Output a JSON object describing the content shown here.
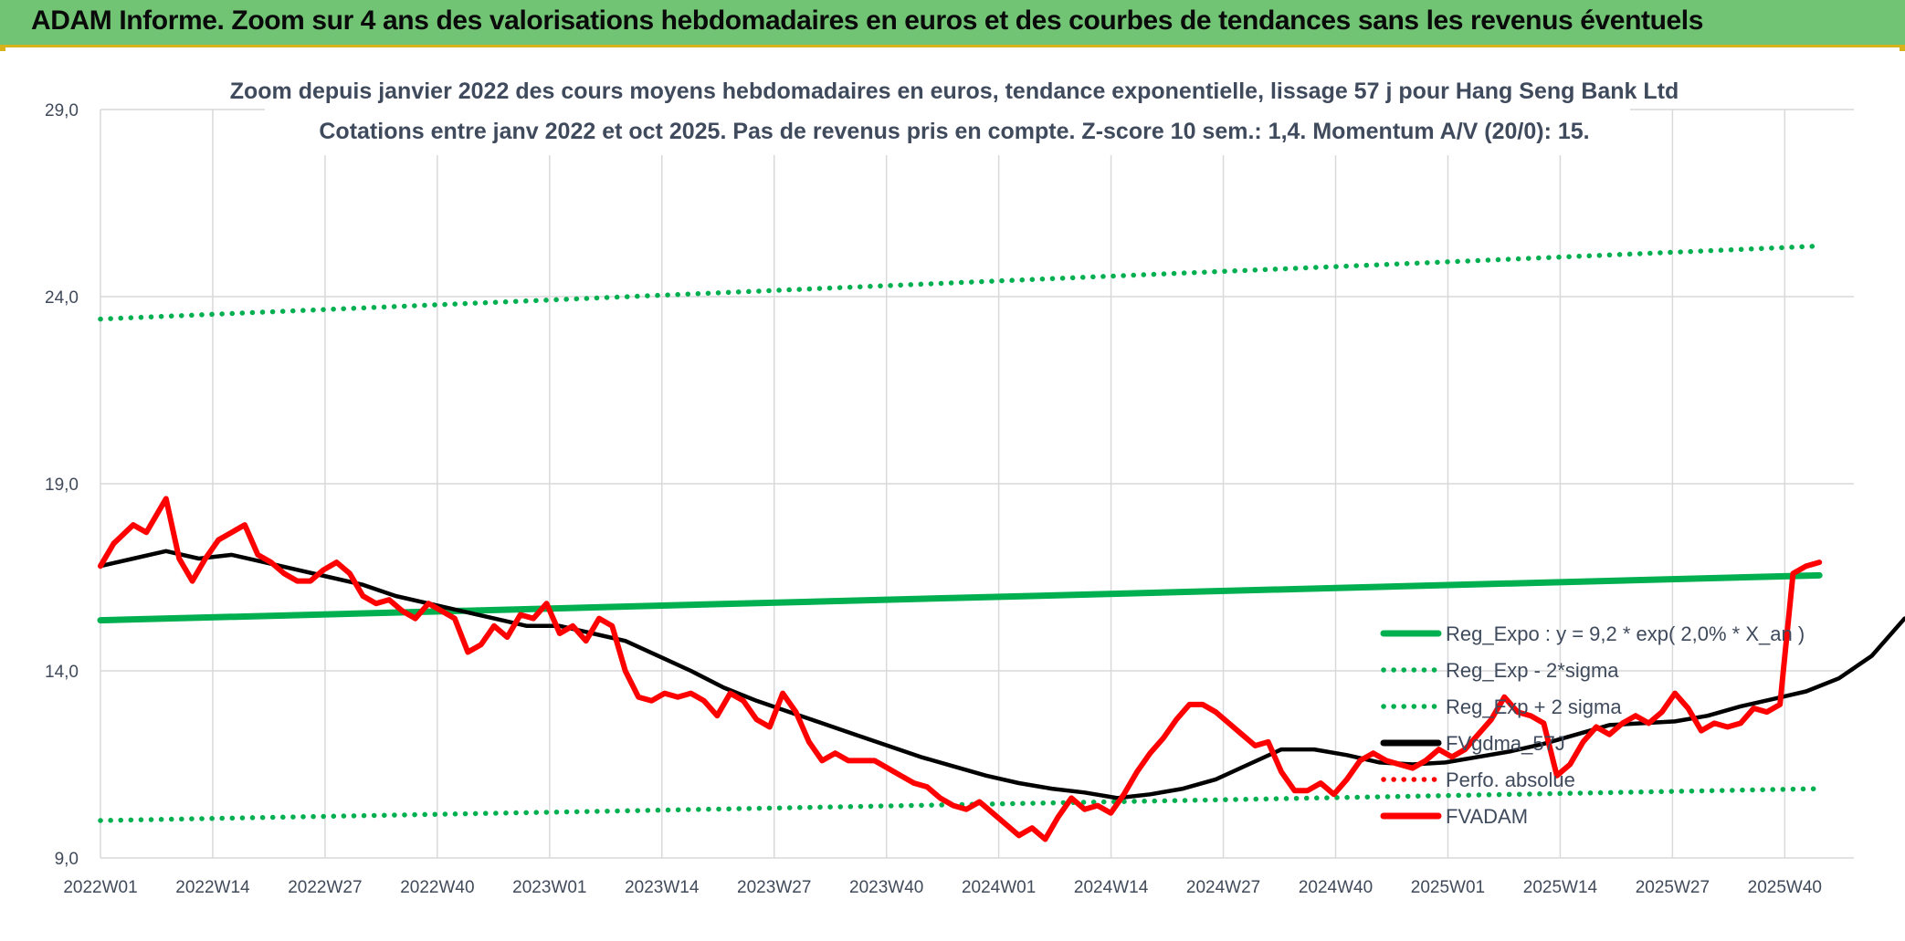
{
  "banner": {
    "title": "ADAM Informe. Zoom sur 4 ans des valorisations hebdomadaires en euros et des courbes de tendances sans les revenus éventuels"
  },
  "colors": {
    "banner_bg": "#71c474",
    "banner_border": "#d8b21a",
    "green": "#00b050",
    "black": "#000000",
    "red": "#ff0000",
    "grid": "#d9d9d9"
  },
  "chart_data": {
    "type": "line",
    "title": [
      "Zoom depuis janvier 2022 des cours moyens hebdomadaires en euros, tendance exponentielle, lissage 57 j pour Hang Seng Bank Ltd",
      "Cotations entre janv 2022 et oct 2025. Pas de revenus pris en compte. Z-score 10 sem.: 1,4. Momentum A/V (20/0): 15."
    ],
    "ylim": [
      9,
      29
    ],
    "y_ticks": [
      "9,0",
      "14,0",
      "19,0",
      "24,0",
      "29,0"
    ],
    "y_tick_values": [
      9,
      14,
      19,
      24,
      29
    ],
    "x_ticks": [
      "2022W01",
      "2022W14",
      "2022W27",
      "2022W40",
      "2023W01",
      "2023W14",
      "2023W27",
      "2023W40",
      "2024W01",
      "2024W14",
      "2024W27",
      "2024W40",
      "2025W01",
      "2025W14",
      "2025W27",
      "2025W40"
    ],
    "x_tick_index": [
      0,
      13,
      26,
      39,
      52,
      65,
      78,
      91,
      104,
      117,
      130,
      143,
      156,
      169,
      182,
      195
    ],
    "x_count": 200,
    "grid": true,
    "legend_position": "right",
    "series": [
      {
        "name": "Reg_Expo : y = 9,2 * exp( 2,0% *  X_an )",
        "style": "solid",
        "color": "#00b050",
        "points": [
          [
            0,
            15.35
          ],
          [
            199,
            16.55
          ]
        ]
      },
      {
        "name": "Reg_Exp - 2*sigma",
        "style": "dotted",
        "color": "#00b050",
        "points": [
          [
            0,
            10.0
          ],
          [
            199,
            10.85
          ]
        ]
      },
      {
        "name": "Reg_Exp + 2 sigma",
        "style": "dotted",
        "color": "#00b050",
        "points": [
          [
            0,
            23.4
          ],
          [
            199,
            25.35
          ]
        ]
      },
      {
        "name": "FVgdma_57J",
        "style": "solid",
        "color": "#000000",
        "points": [
          [
            0,
            16.8
          ],
          [
            5,
            17.0
          ],
          [
            10,
            17.2
          ],
          [
            15,
            17.0
          ],
          [
            20,
            17.1
          ],
          [
            25,
            16.9
          ],
          [
            30,
            16.7
          ],
          [
            35,
            16.5
          ],
          [
            40,
            16.3
          ],
          [
            45,
            16.0
          ],
          [
            50,
            15.8
          ],
          [
            55,
            15.6
          ],
          [
            60,
            15.4
          ],
          [
            65,
            15.2
          ],
          [
            70,
            15.2
          ],
          [
            75,
            15.0
          ],
          [
            80,
            14.8
          ],
          [
            85,
            14.4
          ],
          [
            90,
            14.0
          ],
          [
            95,
            13.55
          ],
          [
            100,
            13.2
          ],
          [
            105,
            12.9
          ],
          [
            110,
            12.6
          ],
          [
            115,
            12.3
          ],
          [
            120,
            12.0
          ],
          [
            125,
            11.7
          ],
          [
            130,
            11.45
          ],
          [
            135,
            11.2
          ],
          [
            140,
            11.0
          ],
          [
            145,
            10.85
          ],
          [
            150,
            10.75
          ],
          [
            155,
            10.6
          ],
          [
            160,
            10.7
          ],
          [
            165,
            10.85
          ],
          [
            170,
            11.1
          ],
          [
            175,
            11.5
          ],
          [
            180,
            11.9
          ],
          [
            185,
            11.9
          ],
          [
            190,
            11.75
          ],
          [
            195,
            11.55
          ],
          [
            200,
            11.5
          ],
          [
            205,
            11.55
          ],
          [
            210,
            11.7
          ],
          [
            215,
            11.85
          ],
          [
            220,
            12.05
          ],
          [
            225,
            12.3
          ],
          [
            230,
            12.55
          ],
          [
            235,
            12.6
          ],
          [
            240,
            12.65
          ],
          [
            245,
            12.8
          ],
          [
            250,
            13.05
          ],
          [
            255,
            13.25
          ],
          [
            260,
            13.45
          ],
          [
            265,
            13.8
          ],
          [
            270,
            14.4
          ],
          [
            275,
            15.4
          ]
        ]
      },
      {
        "name": "Perfo. absolue",
        "style": "dotted",
        "color": "#ff0000",
        "points": []
      },
      {
        "name": "FVADAM",
        "style": "solid",
        "color": "#ff0000",
        "points": [
          [
            0,
            16.8
          ],
          [
            2,
            17.4
          ],
          [
            5,
            17.9
          ],
          [
            7,
            17.7
          ],
          [
            10,
            18.6
          ],
          [
            12,
            17.0
          ],
          [
            14,
            16.4
          ],
          [
            16,
            17.0
          ],
          [
            18,
            17.5
          ],
          [
            20,
            17.7
          ],
          [
            22,
            17.9
          ],
          [
            24,
            17.1
          ],
          [
            26,
            16.9
          ],
          [
            28,
            16.6
          ],
          [
            30,
            16.4
          ],
          [
            32,
            16.4
          ],
          [
            34,
            16.7
          ],
          [
            36,
            16.9
          ],
          [
            38,
            16.6
          ],
          [
            40,
            16.0
          ],
          [
            42,
            15.8
          ],
          [
            44,
            15.9
          ],
          [
            46,
            15.6
          ],
          [
            48,
            15.4
          ],
          [
            50,
            15.8
          ],
          [
            52,
            15.6
          ],
          [
            54,
            15.4
          ],
          [
            56,
            14.5
          ],
          [
            58,
            14.7
          ],
          [
            60,
            15.2
          ],
          [
            62,
            14.9
          ],
          [
            64,
            15.5
          ],
          [
            66,
            15.4
          ],
          [
            68,
            15.8
          ],
          [
            70,
            15.0
          ],
          [
            72,
            15.2
          ],
          [
            74,
            14.8
          ],
          [
            76,
            15.4
          ],
          [
            78,
            15.2
          ],
          [
            80,
            14.0
          ],
          [
            82,
            13.3
          ],
          [
            84,
            13.2
          ],
          [
            86,
            13.4
          ],
          [
            88,
            13.3
          ],
          [
            90,
            13.4
          ],
          [
            92,
            13.2
          ],
          [
            94,
            12.8
          ],
          [
            96,
            13.4
          ],
          [
            98,
            13.2
          ],
          [
            100,
            12.7
          ],
          [
            102,
            12.5
          ],
          [
            104,
            13.4
          ],
          [
            106,
            12.9
          ],
          [
            108,
            12.1
          ],
          [
            110,
            11.6
          ],
          [
            112,
            11.8
          ],
          [
            114,
            11.6
          ],
          [
            116,
            11.6
          ],
          [
            118,
            11.6
          ],
          [
            120,
            11.4
          ],
          [
            122,
            11.2
          ],
          [
            124,
            11.0
          ],
          [
            126,
            10.9
          ],
          [
            128,
            10.6
          ],
          [
            130,
            10.4
          ],
          [
            132,
            10.3
          ],
          [
            134,
            10.5
          ],
          [
            136,
            10.2
          ],
          [
            138,
            9.9
          ],
          [
            140,
            9.6
          ],
          [
            142,
            9.8
          ],
          [
            144,
            9.5
          ],
          [
            146,
            10.1
          ],
          [
            148,
            10.6
          ],
          [
            150,
            10.3
          ],
          [
            152,
            10.4
          ],
          [
            154,
            10.2
          ],
          [
            156,
            10.7
          ],
          [
            158,
            11.3
          ],
          [
            160,
            11.8
          ],
          [
            162,
            12.2
          ],
          [
            164,
            12.7
          ],
          [
            166,
            13.1
          ],
          [
            168,
            13.1
          ],
          [
            170,
            12.9
          ],
          [
            172,
            12.6
          ],
          [
            174,
            12.3
          ],
          [
            176,
            12.0
          ],
          [
            178,
            12.1
          ],
          [
            180,
            11.3
          ],
          [
            182,
            10.8
          ],
          [
            184,
            10.8
          ],
          [
            186,
            11.0
          ],
          [
            188,
            10.7
          ],
          [
            190,
            11.1
          ],
          [
            192,
            11.6
          ],
          [
            194,
            11.8
          ],
          [
            196,
            11.6
          ],
          [
            198,
            11.5
          ],
          [
            200,
            11.4
          ],
          [
            202,
            11.6
          ],
          [
            204,
            11.9
          ],
          [
            206,
            11.7
          ],
          [
            208,
            11.9
          ],
          [
            210,
            12.3
          ],
          [
            212,
            12.7
          ],
          [
            214,
            13.3
          ],
          [
            216,
            12.9
          ],
          [
            218,
            12.8
          ],
          [
            220,
            12.6
          ],
          [
            222,
            11.2
          ],
          [
            224,
            11.5
          ],
          [
            226,
            12.1
          ],
          [
            228,
            12.5
          ],
          [
            230,
            12.3
          ],
          [
            232,
            12.6
          ],
          [
            234,
            12.8
          ],
          [
            236,
            12.6
          ],
          [
            238,
            12.9
          ],
          [
            240,
            13.4
          ],
          [
            242,
            13.0
          ],
          [
            244,
            12.4
          ],
          [
            246,
            12.6
          ],
          [
            248,
            12.5
          ],
          [
            250,
            12.6
          ],
          [
            252,
            13.0
          ],
          [
            254,
            12.9
          ],
          [
            256,
            13.1
          ],
          [
            258,
            16.6
          ],
          [
            260,
            16.8
          ],
          [
            262,
            16.9
          ]
        ]
      }
    ]
  }
}
